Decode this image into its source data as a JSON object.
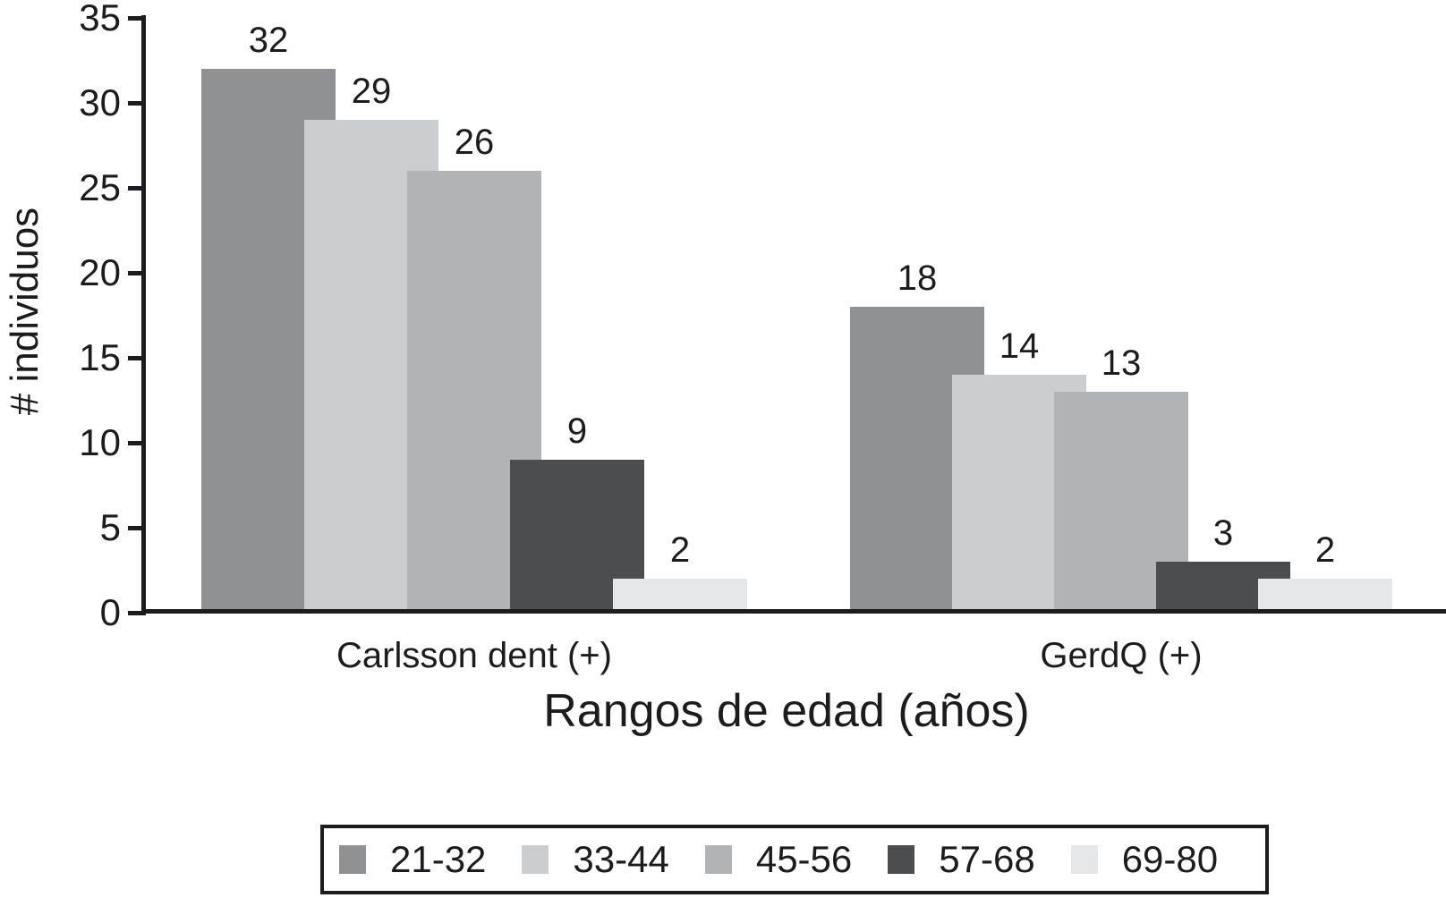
{
  "chart_data": {
    "type": "bar",
    "style": "overlapping-grouped-bars-grayscale",
    "title": "",
    "xlabel": "Rangos de edad (años)",
    "ylabel": "# individuos",
    "categories": [
      "Carlsson dent (+)",
      "GerdQ (+)"
    ],
    "series": [
      {
        "name": "21-32",
        "color": "#8f9193",
        "values": [
          32,
          18
        ]
      },
      {
        "name": "33-44",
        "color": "#cbcdce",
        "values": [
          29,
          14
        ]
      },
      {
        "name": "45-56",
        "color": "#b1b3b5",
        "values": [
          26,
          13
        ]
      },
      {
        "name": "57-68",
        "color": "#4b4d4f",
        "values": [
          9,
          3
        ]
      },
      {
        "name": "69-80",
        "color": "#e6e7e8",
        "values": [
          2,
          2
        ]
      }
    ],
    "ylim": [
      0,
      35
    ],
    "yticks": [
      0,
      5,
      10,
      15,
      20,
      25,
      30,
      35
    ],
    "grid": false,
    "bar_value_labels_shown": true,
    "legend_position": "bottom-boxed"
  },
  "colors": {
    "background": "#ffffff",
    "axis": "#1c1c1e",
    "text": "#1c1c1e"
  }
}
